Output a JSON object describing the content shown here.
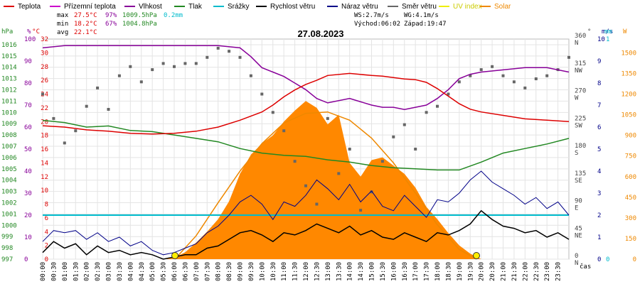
{
  "chart_data": {
    "type": "line",
    "title": "27.08.2023",
    "legend": [
      {
        "name": "Teplota",
        "color": "#dd0000"
      },
      {
        "name": "Přízemní teplota",
        "color": "#cc00cc"
      },
      {
        "name": "Vlhkost",
        "color": "#880099"
      },
      {
        "name": "Tlak",
        "color": "#228822"
      },
      {
        "name": "Srážky",
        "color": "#00bbcc"
      },
      {
        "name": "Rychlost větru",
        "color": "#000000"
      },
      {
        "name": "Náraz větru",
        "color": "#000088"
      },
      {
        "name": "Směr větru",
        "color": "#666666"
      },
      {
        "name": "UV index",
        "color": "#eeee00"
      },
      {
        "name": "Solar",
        "color": "#ee8800"
      }
    ],
    "stats": {
      "max_label": "max",
      "min_label": "min",
      "avg_label": "avg",
      "max_temp": "27.5°C",
      "max_hum": "97%",
      "max_press": "1009.5hPa",
      "rain": "0.2mm",
      "min_temp": "18.2°C",
      "min_hum": "67%",
      "min_press": "1004.8hPa",
      "avg_temp": "22.1°C",
      "ws": "WS:2.7m/s",
      "wg": "WG:4.1m/s",
      "sunrise": "Východ:06:02",
      "sunset": "Západ:19:47"
    },
    "axis_units": {
      "hpa": "hPa",
      "pct": "%",
      "degc": "°C",
      "deg": "°",
      "ms": "m/s",
      "mm": "mm",
      "w": "W",
      "time": "čas"
    },
    "x_ticks": [
      "00:00",
      "00:30",
      "01:00",
      "01:30",
      "02:00",
      "02:30",
      "03:00",
      "03:30",
      "04:00",
      "04:30",
      "05:00",
      "05:30",
      "06:00",
      "06:30",
      "07:00",
      "07:30",
      "08:00",
      "08:30",
      "09:00",
      "09:30",
      "10:00",
      "10:30",
      "11:00",
      "11:30",
      "12:00",
      "12:30",
      "13:00",
      "13:30",
      "14:00",
      "14:30",
      "15:00",
      "15:30",
      "16:00",
      "16:30",
      "17:00",
      "17:30",
      "18:00",
      "18:30",
      "19:00",
      "19:30",
      "20:00",
      "20:30",
      "21:00",
      "21:30",
      "22:00",
      "22:30",
      "23:00",
      "23:30"
    ],
    "y_hpa_ticks": [
      997,
      998,
      999,
      1000,
      1001,
      1002,
      1003,
      1004,
      1005,
      1006,
      1007,
      1008,
      1009,
      1010,
      1011,
      1012,
      1013,
      1014,
      1015,
      1016
    ],
    "y_pct_ticks": [
      0,
      10,
      20,
      30,
      40,
      50,
      60,
      70,
      80,
      90,
      100
    ],
    "y_temp_ticks": [
      0,
      2,
      4,
      6,
      8,
      10,
      12,
      14,
      16,
      18,
      20,
      22,
      24,
      26,
      28,
      30,
      32
    ],
    "y_dir_ticks": [
      {
        "value": 0,
        "label": "0",
        "label2": "N"
      },
      {
        "value": 45,
        "label": "45",
        "label2": "NE"
      },
      {
        "value": 90,
        "label": "90",
        "label2": "E"
      },
      {
        "value": 135,
        "label": "135",
        "label2": "SE"
      },
      {
        "value": 180,
        "label": "180",
        "label2": "S"
      },
      {
        "value": 225,
        "label": "225",
        "label2": "SW"
      },
      {
        "value": 270,
        "label": "270",
        "label2": "W"
      },
      {
        "value": 315,
        "label": "315",
        "label2": "NW"
      },
      {
        "value": 360,
        "label": "360",
        "label2": "N"
      }
    ],
    "y_ms_ticks": [
      0,
      1,
      2,
      3,
      4,
      5,
      6,
      7,
      8,
      9,
      10
    ],
    "y_mm_ticks": [
      0,
      1
    ],
    "y_w_ticks": [
      0,
      150,
      300,
      450,
      600,
      750,
      900,
      1050,
      1200,
      1350,
      1500
    ],
    "ranges": {
      "hpa": [
        997,
        1016.5
      ],
      "pct": [
        0,
        100
      ],
      "temp": [
        0,
        32
      ],
      "dir": [
        0,
        360
      ],
      "ms": [
        0,
        10
      ],
      "mm": [
        0,
        1
      ],
      "w": [
        0,
        1600
      ]
    },
    "series": {
      "temperature_c": {
        "x": [
          0,
          1,
          2,
          3,
          4,
          5,
          6,
          7,
          8,
          9,
          10,
          10.5,
          11,
          11.5,
          12,
          12.5,
          13,
          14,
          15,
          15.5,
          16,
          16.5,
          17,
          17.5,
          18,
          18.5,
          19,
          19.5,
          20,
          21,
          22,
          23,
          24
        ],
        "y": [
          19.4,
          19.2,
          18.8,
          18.6,
          18.3,
          18.2,
          18.3,
          18.6,
          19.2,
          20.2,
          21.4,
          22.4,
          23.6,
          24.6,
          25.4,
          26,
          26.7,
          27,
          26.7,
          26.6,
          26.4,
          26.2,
          26.1,
          25.7,
          24.8,
          23.7,
          22.6,
          21.8,
          21.4,
          20.9,
          20.4,
          20.2,
          20
        ]
      },
      "humidity_pct": {
        "x": [
          0,
          1,
          2,
          3,
          4,
          5,
          6,
          7,
          8,
          9,
          9.5,
          10,
          10.5,
          11,
          11.5,
          12,
          12.5,
          13,
          14,
          15,
          15.5,
          16,
          16.5,
          17,
          17.5,
          18,
          18.5,
          19,
          19.5,
          20,
          21,
          22,
          23,
          24
        ],
        "y": [
          96,
          97,
          97,
          97,
          97,
          97,
          97,
          97,
          97,
          96,
          92,
          87,
          85,
          83,
          80,
          77,
          73,
          71,
          73,
          70,
          69,
          69,
          68,
          69,
          70,
          73,
          77,
          82,
          84,
          85,
          86,
          87,
          87,
          85
        ]
      },
      "pressure_hpa": {
        "x": [
          0,
          1,
          2,
          3,
          4,
          5,
          6,
          7,
          8,
          9,
          10,
          11,
          12,
          13,
          14,
          15,
          16,
          17,
          18,
          19,
          20,
          21,
          22,
          23,
          24
        ],
        "y": [
          1009.3,
          1009.1,
          1008.7,
          1008.8,
          1008.4,
          1008.3,
          1008,
          1007.7,
          1007.4,
          1006.8,
          1006.4,
          1006.2,
          1006.1,
          1005.8,
          1005.6,
          1005.3,
          1005.1,
          1005,
          1004.9,
          1004.9,
          1005.6,
          1006.4,
          1006.8,
          1007.2,
          1007.7
        ]
      },
      "rain_mm": 0.2,
      "wind_speed_ms": {
        "x": [
          0,
          0.5,
          1,
          1.5,
          2,
          2.5,
          3,
          3.5,
          4,
          4.5,
          5,
          5.5,
          6,
          6.5,
          7,
          7.5,
          8,
          8.5,
          9,
          9.5,
          10,
          10.5,
          11,
          11.5,
          12,
          12.5,
          13,
          13.5,
          14,
          14.5,
          15,
          15.5,
          16,
          16.5,
          17,
          17.5,
          18,
          18.5,
          19,
          19.5,
          20,
          20.5,
          21,
          21.5,
          22,
          22.5,
          23,
          23.5,
          24
        ],
        "y": [
          0.3,
          0.8,
          0.5,
          0.7,
          0.2,
          0.6,
          0.3,
          0.4,
          0.2,
          0.3,
          0.2,
          0,
          0.1,
          0.2,
          0.2,
          0.5,
          0.6,
          0.9,
          1.2,
          1.3,
          1.1,
          0.8,
          1.2,
          1.1,
          1.3,
          1.6,
          1.4,
          1.2,
          1.5,
          1.1,
          1.3,
          1.0,
          0.9,
          1.2,
          1.0,
          0.8,
          1.2,
          1.1,
          1.3,
          1.6,
          2.2,
          1.8,
          1.5,
          1.4,
          1.2,
          1.3,
          1.0,
          1.2,
          0.9
        ]
      },
      "wind_gust_ms": {
        "x": [
          0,
          0.5,
          1,
          1.5,
          2,
          2.5,
          3,
          3.5,
          4,
          4.5,
          5,
          5.5,
          6,
          6.5,
          7,
          7.5,
          8,
          8.5,
          9,
          9.5,
          10,
          10.5,
          11,
          11.5,
          12,
          12.5,
          13,
          13.5,
          14,
          14.5,
          15,
          15.5,
          16,
          16.5,
          17,
          17.5,
          18,
          18.5,
          19,
          19.5,
          20,
          20.5,
          21,
          21.5,
          22,
          22.5,
          23,
          23.5,
          24
        ],
        "y": [
          0.8,
          1.3,
          1.2,
          1.3,
          0.9,
          1.2,
          0.8,
          1,
          0.6,
          0.8,
          0.4,
          0.2,
          0.3,
          0.5,
          0.7,
          1.2,
          1.5,
          2,
          2.6,
          2.9,
          2.5,
          1.8,
          2.6,
          2.4,
          2.9,
          3.6,
          3.2,
          2.7,
          3.4,
          2.6,
          3.1,
          2.4,
          2.2,
          2.9,
          2.4,
          1.9,
          2.7,
          2.6,
          3.0,
          3.6,
          4.0,
          3.5,
          3.2,
          2.9,
          2.5,
          2.8,
          2.3,
          2.6,
          2.0
        ]
      },
      "wind_dir_deg": {
        "x": [
          0,
          0.5,
          1,
          1.5,
          2,
          2.5,
          3,
          3.5,
          4,
          4.5,
          5,
          5.5,
          6,
          6.5,
          7,
          7.5,
          8,
          8.5,
          9,
          9.5,
          10,
          10.5,
          11,
          11.5,
          12,
          12.5,
          13,
          13.5,
          14,
          14.5,
          15,
          15.5,
          16,
          16.5,
          17,
          17.5,
          18,
          18.5,
          19,
          19.5,
          20,
          20.5,
          21,
          21.5,
          22,
          22.5,
          23,
          23.5,
          24
        ],
        "y": [
          270,
          230,
          190,
          210,
          250,
          280,
          245,
          300,
          315,
          290,
          310,
          320,
          315,
          320,
          320,
          330,
          345,
          340,
          330,
          300,
          270,
          240,
          210,
          160,
          120,
          90,
          230,
          140,
          180,
          80,
          110,
          160,
          200,
          220,
          180,
          240,
          250,
          270,
          290,
          300,
          310,
          315,
          300,
          290,
          280,
          295,
          300,
          310,
          330
        ]
      },
      "solar_w": {
        "x": [
          5.5,
          6,
          6.5,
          7,
          7.5,
          8,
          8.5,
          9,
          9.5,
          10,
          10.5,
          11,
          11.5,
          12,
          12.5,
          13,
          13.5,
          14,
          14.5,
          15,
          15.5,
          16,
          16.5,
          17,
          17.5,
          18,
          18.5,
          19,
          19.5,
          20
        ],
        "y": [
          0,
          10,
          50,
          120,
          200,
          290,
          420,
          620,
          760,
          840,
          900,
          1000,
          1080,
          1150,
          1100,
          980,
          1050,
          700,
          600,
          720,
          740,
          680,
          620,
          520,
          380,
          290,
          190,
          100,
          40,
          0
        ]
      },
      "solar_theory_w": {
        "x": [
          6.03,
          7,
          8,
          9,
          10,
          11,
          12,
          13,
          14,
          15,
          16,
          17,
          18,
          19,
          19.78
        ],
        "y": [
          0,
          170,
          410,
          640,
          840,
          990,
          1060,
          1070,
          1010,
          880,
          700,
          480,
          250,
          70,
          0
        ]
      },
      "sun_markers": [
        "06:02",
        "19:47"
      ]
    }
  }
}
